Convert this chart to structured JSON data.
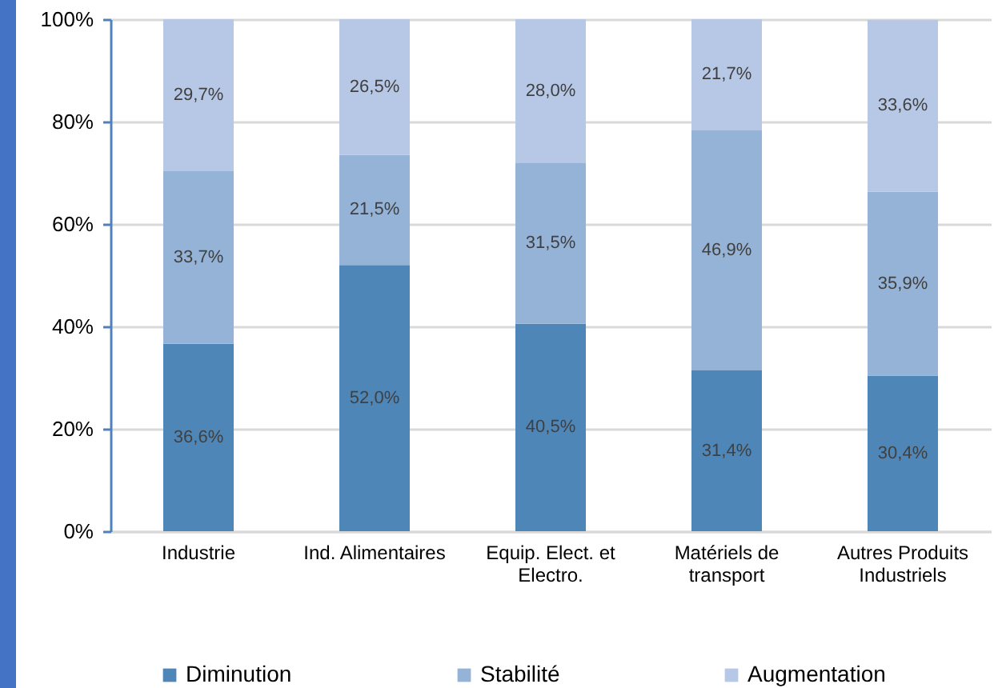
{
  "chart_data": {
    "type": "bar",
    "stacked": true,
    "categories": [
      "Industrie",
      "Ind. Alimentaires",
      "Equip. Elect. et Electro.",
      "Matériels de transport",
      "Autres Produits Industriels"
    ],
    "series": [
      {
        "name": "Diminution",
        "color": "#4f86b8",
        "values": [
          36.6,
          52.0,
          40.5,
          31.4,
          30.4
        ],
        "value_labels": [
          "36,6%",
          "52,0%",
          "40,5%",
          "31,4%",
          "30,4%"
        ]
      },
      {
        "name": "Stabilité",
        "color": "#95b3d7",
        "values": [
          33.7,
          21.5,
          31.5,
          46.9,
          35.9
        ],
        "value_labels": [
          "33,7%",
          "21,5%",
          "31,5%",
          "46,9%",
          "35,9%"
        ]
      },
      {
        "name": "Augmentation",
        "color": "#b6c8e6",
        "values": [
          29.7,
          26.5,
          28.0,
          21.7,
          33.6
        ],
        "value_labels": [
          "29,7%",
          "26,5%",
          "28,0%",
          "21,7%",
          "33,6%"
        ]
      }
    ],
    "ylim": [
      0,
      100
    ],
    "yticks": [
      {
        "value": 0,
        "label": "0%"
      },
      {
        "value": 20,
        "label": "20%"
      },
      {
        "value": 40,
        "label": "40%"
      },
      {
        "value": 60,
        "label": "60%"
      },
      {
        "value": 80,
        "label": "80%"
      },
      {
        "value": 100,
        "label": "100%"
      }
    ],
    "grid": "y",
    "legend": "bottom"
  }
}
